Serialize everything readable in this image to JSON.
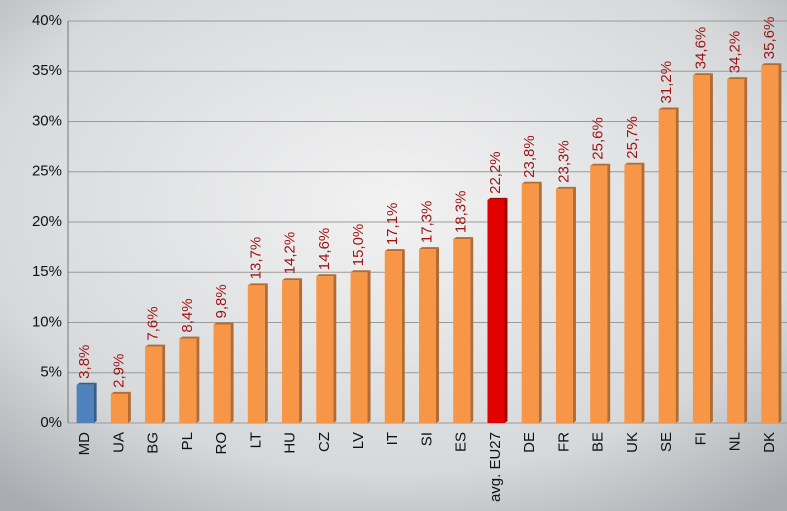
{
  "chart_data": {
    "type": "bar",
    "categories": [
      "MD",
      "UA",
      "BG",
      "PL",
      "RO",
      "LT",
      "HU",
      "CZ",
      "LV",
      "IT",
      "SI",
      "ES",
      "avg. EU27",
      "DE",
      "FR",
      "BE",
      "UK",
      "SE",
      "FI",
      "NL",
      "DK"
    ],
    "values": [
      3.8,
      2.9,
      7.6,
      8.4,
      9.8,
      13.7,
      14.2,
      14.6,
      15.0,
      17.1,
      17.3,
      18.3,
      22.2,
      23.8,
      23.3,
      25.6,
      25.7,
      31.2,
      34.6,
      34.2,
      35.6
    ],
    "value_labels": [
      "3,8%",
      "2,9%",
      "7,6%",
      "8,4%",
      "9,8%",
      "13,7%",
      "14,2%",
      "14,6%",
      "15,0%",
      "17,1%",
      "17,3%",
      "18,3%",
      "22,2%",
      "23,8%",
      "23,3%",
      "25,6%",
      "25,7%",
      "31,2%",
      "34,6%",
      "34,2%",
      "35,6%"
    ],
    "colors": [
      "#4f81bd",
      "#f79646",
      "#f79646",
      "#f79646",
      "#f79646",
      "#f79646",
      "#f79646",
      "#f79646",
      "#f79646",
      "#f79646",
      "#f79646",
      "#f79646",
      "#e30000",
      "#f79646",
      "#f79646",
      "#f79646",
      "#f79646",
      "#f79646",
      "#f79646",
      "#f79646",
      "#f79646"
    ],
    "ylim": [
      0,
      40
    ],
    "yticks": [
      {
        "value": 0,
        "label": "0%"
      },
      {
        "value": 5,
        "label": "5%"
      },
      {
        "value": 10,
        "label": "10%"
      },
      {
        "value": 15,
        "label": "15%"
      },
      {
        "value": 20,
        "label": "20%"
      },
      {
        "value": 25,
        "label": "25%"
      },
      {
        "value": 30,
        "label": "30%"
      },
      {
        "value": 35,
        "label": "35%"
      },
      {
        "value": 40,
        "label": "40%"
      }
    ],
    "grid": true
  }
}
